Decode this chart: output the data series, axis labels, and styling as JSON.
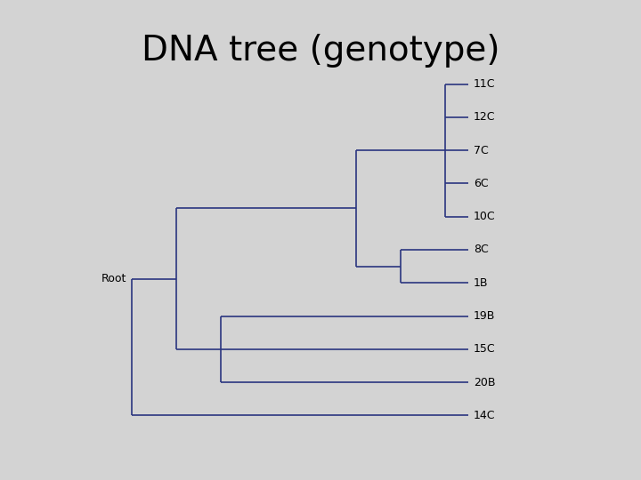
{
  "title": "DNA tree (genotype)",
  "title_fontsize": 28,
  "title_color": "#000000",
  "bg_color": "#d3d3d3",
  "panel_color": "#ffffff",
  "tree_color": "#2a3580",
  "label_color": "#000000",
  "label_fontsize": 9,
  "root_label": "Root",
  "leaves": [
    "11C",
    "12C",
    "7C",
    "6C",
    "10C",
    "8C",
    "1B",
    "19B",
    "15C",
    "20B",
    "14C"
  ],
  "leaf_y": [
    10,
    9,
    8,
    7,
    6,
    5,
    4,
    3,
    2,
    1,
    0
  ],
  "leaf_x_tip": 8.5,
  "x_n1": 8.0,
  "x_n2": 7.0,
  "x_n3": 6.0,
  "x_n4": 3.0,
  "x_n5": 2.0,
  "x_root": 1.0,
  "xlim": [
    -0.5,
    11.5
  ],
  "ylim": [
    -0.5,
    10.8
  ]
}
